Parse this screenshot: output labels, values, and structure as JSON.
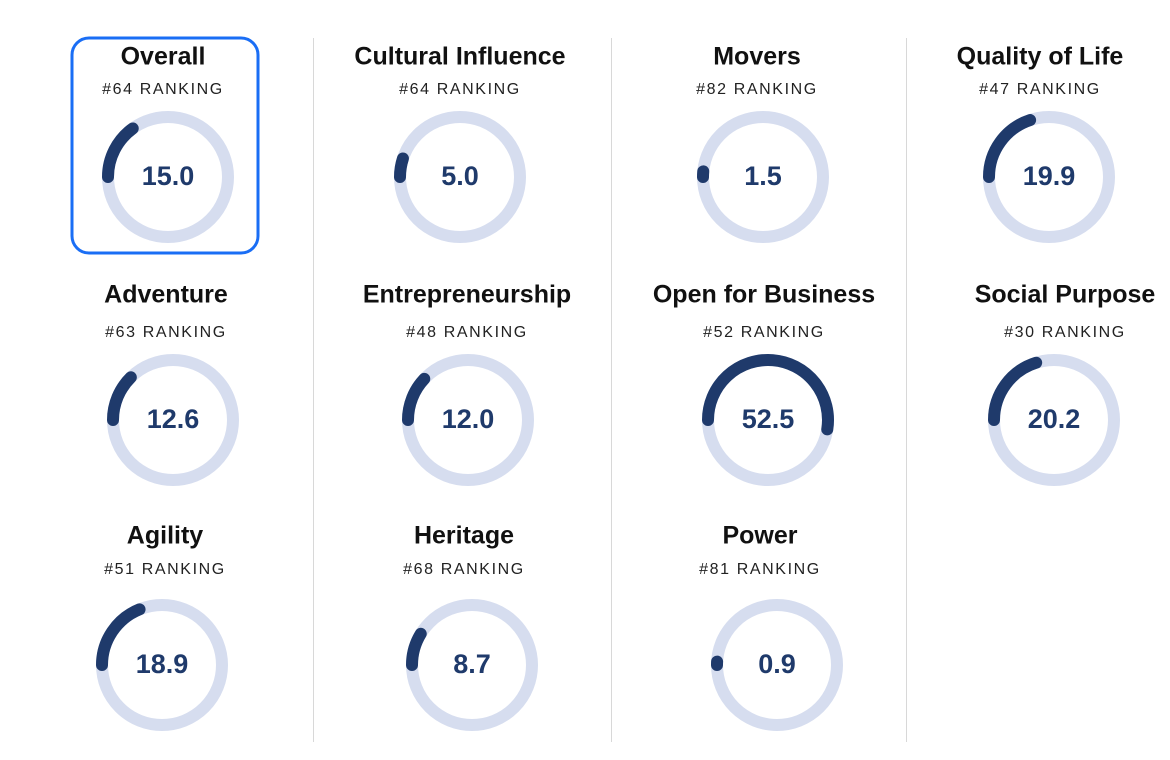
{
  "cards": [
    {
      "title": "Overall",
      "ranking": "#64 RANKING",
      "score": {
        "value": 15,
        "label": "15.0"
      }
    },
    {
      "title": "Cultural Influence",
      "ranking": "#64 RANKING",
      "score": {
        "value": 5,
        "label": "5.0"
      }
    },
    {
      "title": "Movers",
      "ranking": "#82 RANKING",
      "score": 1.5
    },
    {
      "title": "Quality of Life",
      "ranking": "#47 RANKING",
      "score": 19.9
    },
    {
      "title": "Adventure",
      "ranking": "#63 RANKING",
      "score": 12.6
    },
    {
      "title": "Entrepreneurship",
      "ranking": "#48 RANKING",
      "score": {
        "value": 12,
        "label": "12.0"
      }
    },
    {
      "title": "Open for Business",
      "ranking": "#52 RANKING",
      "score": 52.5
    },
    {
      "title": "Social Purpose",
      "ranking": "#30 RANKING",
      "score": 20.2
    },
    {
      "title": "Agility",
      "ranking": "#51 RANKING",
      "score": 18.9
    },
    {
      "title": "Heritage",
      "ranking": "#68 RANKING",
      "score": 8.7
    },
    {
      "title": "Power",
      "ranking": "#81 RANKING",
      "score": 0.9
    }
  ]
}
